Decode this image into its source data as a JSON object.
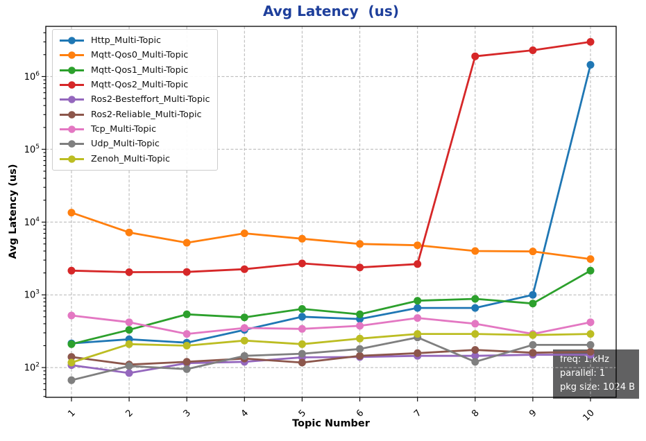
{
  "annotation": {
    "freq": "freq: 1 kHz",
    "parallel": "parallel: 1",
    "pkg_size": "pkg size: 1024 B"
  },
  "chart_data": {
    "type": "line",
    "title": "Avg Latency  (us)",
    "title_color": "#1e3f9b",
    "xlabel": "Topic Number",
    "ylabel": "Avg Latency (us)",
    "x": [
      1,
      2,
      3,
      4,
      5,
      6,
      7,
      8,
      9,
      10
    ],
    "x_tick_labels": [
      "1",
      "2",
      "3",
      "4",
      "5",
      "6",
      "7",
      "8",
      "9",
      "10"
    ],
    "x_tick_rotation": 45,
    "y_scale": "log",
    "y_ticks": [
      100,
      1000,
      10000,
      100000,
      1000000
    ],
    "ylim": [
      39,
      4900000
    ],
    "grid": true,
    "grid_style": "dashed",
    "legend_position": "upper left",
    "series": [
      {
        "name": "Http_Multi-Topic",
        "color": "#1f77b4",
        "values": [
          215,
          245,
          220,
          330,
          500,
          465,
          660,
          660,
          1000,
          1450000
        ]
      },
      {
        "name": "Mqtt-Qos0_Multi-Topic",
        "color": "#ff7f0e",
        "values": [
          13500,
          7200,
          5200,
          7000,
          5900,
          5000,
          4800,
          4000,
          3950,
          3100
        ]
      },
      {
        "name": "Mqtt-Qos1_Multi-Topic",
        "color": "#2ca02c",
        "values": [
          210,
          330,
          540,
          490,
          640,
          540,
          830,
          880,
          760,
          2150
        ]
      },
      {
        "name": "Mqtt-Qos2_Multi-Topic",
        "color": "#d62728",
        "values": [
          2150,
          2050,
          2060,
          2250,
          2700,
          2380,
          2650,
          1900000,
          2300000,
          3000000
        ]
      },
      {
        "name": "Ros2-Besteffort_Multi-Topic",
        "color": "#9467bd",
        "values": [
          108,
          84,
          115,
          120,
          138,
          140,
          145,
          145,
          150,
          150
        ]
      },
      {
        "name": "Ros2-Reliable_Multi-Topic",
        "color": "#8c564b",
        "values": [
          140,
          110,
          120,
          133,
          117,
          145,
          158,
          175,
          160,
          165
        ]
      },
      {
        "name": "Tcp_Multi-Topic",
        "color": "#e377c2",
        "values": [
          520,
          420,
          290,
          350,
          340,
          375,
          480,
          400,
          290,
          420
        ]
      },
      {
        "name": "Udp_Multi-Topic",
        "color": "#7f7f7f",
        "values": [
          67,
          105,
          95,
          145,
          155,
          180,
          260,
          120,
          205,
          205
        ]
      },
      {
        "name": "Zenoh_Multi-Topic",
        "color": "#bcbd22",
        "values": [
          117,
          210,
          200,
          235,
          210,
          250,
          290,
          290,
          280,
          290
        ]
      }
    ]
  }
}
